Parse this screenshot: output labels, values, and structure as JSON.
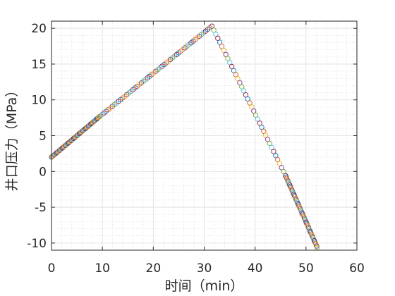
{
  "chart_data": {
    "type": "scatter",
    "title": "",
    "xlabel": "时间（min）",
    "ylabel": "井口压力（MPa）",
    "xlim": [
      0,
      60
    ],
    "ylim": [
      -11,
      21
    ],
    "xticks": [
      "0",
      "10",
      "20",
      "30",
      "40",
      "50",
      "60"
    ],
    "yticks": [
      "20",
      "15",
      "10",
      "5",
      "0",
      "-5",
      "-10"
    ],
    "grid": true,
    "minor_grid": true,
    "legend": "none",
    "marker": "circle-open",
    "marker_colors": [
      "#0072bd",
      "#d95319",
      "#edb120",
      "#7e2f8e",
      "#77ac30",
      "#4dbeee",
      "#a2142f"
    ],
    "segments": [
      {
        "x_start": 0,
        "y_start": 2.0,
        "x_end": 9.5,
        "y_end": 7.7,
        "n": 60
      },
      {
        "x_start": 9.5,
        "y_start": 7.7,
        "x_end": 31.5,
        "y_end": 20.3,
        "n": 55
      },
      {
        "x_start": 31.5,
        "y_start": 20.3,
        "x_end": 46.0,
        "y_end": -0.6,
        "n": 38
      },
      {
        "x_start": 46.0,
        "y_start": -0.6,
        "x_end": 52.2,
        "y_end": -10.6,
        "n": 55
      }
    ]
  }
}
